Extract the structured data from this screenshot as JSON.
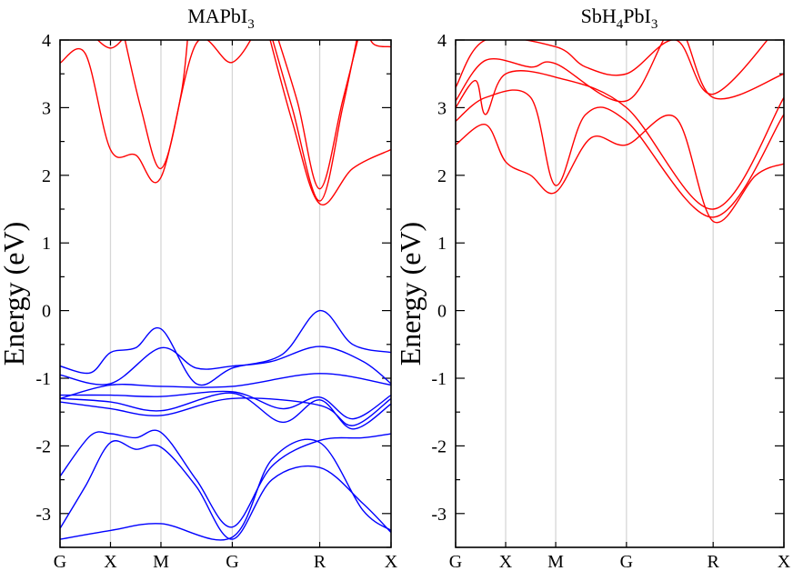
{
  "chart_data": [
    {
      "type": "line",
      "title": "MAPbI",
      "title_subscript": "3",
      "ylabel": "Energy (eV)",
      "xlabel": "",
      "ylim": [
        -3.5,
        4
      ],
      "yticks": [
        -3,
        -2,
        -1,
        0,
        1,
        2,
        3,
        4
      ],
      "high_symmetry_points": [
        {
          "label": "G",
          "k": 0
        },
        {
          "label": "X",
          "k": 0.5
        },
        {
          "label": "M",
          "k": 1.0
        },
        {
          "label": "G",
          "k": 1.707
        },
        {
          "label": "R",
          "k": 2.573
        },
        {
          "label": "X",
          "k": 3.28
        }
      ],
      "colors": {
        "conduction": "#ff0000",
        "valence": "#0000ff"
      },
      "series": [
        {
          "name": "CB1",
          "band": "conduction",
          "points": [
            [
              0,
              3.66
            ],
            [
              0.25,
              3.8
            ],
            [
              0.5,
              2.38
            ],
            [
              0.75,
              2.3
            ],
            [
              1.0,
              1.97
            ],
            [
              1.35,
              3.95
            ],
            [
              1.707,
              3.67
            ],
            [
              2.0,
              4.3
            ]
          ]
        },
        {
          "name": "CB2",
          "band": "conduction",
          "points": [
            [
              0.2,
              4.3
            ],
            [
              0.5,
              3.88
            ],
            [
              0.75,
              4.3
            ]
          ]
        },
        {
          "name": "CB3",
          "band": "conduction",
          "points": [
            [
              0.6,
              4.3
            ],
            [
              0.8,
              3.0
            ],
            [
              1.0,
              2.1
            ],
            [
              1.2,
              3.2
            ],
            [
              1.28,
              4.3
            ]
          ]
        },
        {
          "name": "CB4",
          "band": "conduction",
          "points": [
            [
              2.03,
              4.3
            ],
            [
              2.3,
              2.8
            ],
            [
              2.573,
              1.58
            ],
            [
              2.9,
              2.1
            ],
            [
              3.28,
              2.38
            ]
          ]
        },
        {
          "name": "CB5",
          "band": "conduction",
          "points": [
            [
              2.05,
              4.3
            ],
            [
              2.3,
              3.0
            ],
            [
              2.573,
              1.62
            ],
            [
              2.8,
              3.0
            ],
            [
              2.98,
              4.3
            ]
          ]
        },
        {
          "name": "CB6",
          "band": "conduction",
          "points": [
            [
              2.1,
              4.3
            ],
            [
              2.35,
              3.1
            ],
            [
              2.573,
              1.8
            ],
            [
              2.8,
              3.1
            ],
            [
              3.0,
              4.3
            ]
          ]
        },
        {
          "name": "CB7",
          "band": "conduction",
          "points": [
            [
              3.0,
              4.3
            ],
            [
              3.1,
              3.95
            ],
            [
              3.28,
              3.9
            ]
          ]
        },
        {
          "name": "VB1",
          "band": "valence",
          "points": [
            [
              0,
              -0.82
            ],
            [
              0.3,
              -0.92
            ],
            [
              0.5,
              -0.62
            ],
            [
              0.75,
              -0.55
            ],
            [
              1.0,
              -0.27
            ],
            [
              1.35,
              -1.08
            ],
            [
              1.707,
              -0.85
            ],
            [
              2.2,
              -0.65
            ],
            [
              2.573,
              0.0
            ],
            [
              2.9,
              -0.5
            ],
            [
              3.28,
              -0.62
            ]
          ]
        },
        {
          "name": "VB2",
          "band": "valence",
          "points": [
            [
              0,
              -0.95
            ],
            [
              0.5,
              -1.08
            ],
            [
              1.0,
              -0.55
            ],
            [
              1.35,
              -0.85
            ],
            [
              1.707,
              -0.82
            ],
            [
              2.1,
              -0.75
            ],
            [
              2.573,
              -0.53
            ],
            [
              3.0,
              -0.75
            ],
            [
              3.28,
              -1.08
            ]
          ]
        },
        {
          "name": "VB3",
          "band": "valence",
          "points": [
            [
              0,
              -1.3
            ],
            [
              0.5,
              -1.1
            ],
            [
              1.0,
              -1.12
            ],
            [
              1.707,
              -1.12
            ],
            [
              2.573,
              -0.93
            ],
            [
              3.28,
              -1.1
            ]
          ]
        },
        {
          "name": "VB4",
          "band": "valence",
          "points": [
            [
              0,
              -1.25
            ],
            [
              0.5,
              -1.25
            ],
            [
              1.0,
              -1.27
            ],
            [
              1.707,
              -1.2
            ],
            [
              2.2,
              -1.45
            ],
            [
              2.573,
              -1.28
            ],
            [
              2.9,
              -1.6
            ],
            [
              3.28,
              -1.25
            ]
          ]
        },
        {
          "name": "VB5",
          "band": "valence",
          "points": [
            [
              0,
              -1.3
            ],
            [
              0.5,
              -1.35
            ],
            [
              1.0,
              -1.48
            ],
            [
              1.707,
              -1.22
            ],
            [
              2.2,
              -1.65
            ],
            [
              2.573,
              -1.32
            ],
            [
              2.9,
              -1.75
            ],
            [
              3.28,
              -1.38
            ]
          ]
        },
        {
          "name": "VB6",
          "band": "valence",
          "points": [
            [
              0,
              -1.35
            ],
            [
              0.5,
              -1.45
            ],
            [
              1.0,
              -1.55
            ],
            [
              1.707,
              -1.3
            ],
            [
              2.573,
              -1.4
            ],
            [
              2.9,
              -1.7
            ],
            [
              3.28,
              -1.3
            ]
          ]
        },
        {
          "name": "VB7",
          "band": "valence",
          "points": [
            [
              0,
              -2.45
            ],
            [
              0.3,
              -1.85
            ],
            [
              0.5,
              -1.82
            ],
            [
              0.75,
              -1.88
            ],
            [
              1.0,
              -1.8
            ],
            [
              1.35,
              -2.5
            ],
            [
              1.707,
              -3.2
            ],
            [
              2.1,
              -2.3
            ],
            [
              2.573,
              -1.92
            ],
            [
              3.0,
              -1.88
            ],
            [
              3.28,
              -1.82
            ]
          ]
        },
        {
          "name": "VB8",
          "band": "valence",
          "points": [
            [
              0,
              -3.22
            ],
            [
              0.25,
              -2.6
            ],
            [
              0.5,
              -1.95
            ],
            [
              0.75,
              -2.05
            ],
            [
              1.0,
              -2.02
            ],
            [
              1.35,
              -2.6
            ],
            [
              1.707,
              -3.38
            ],
            [
              2.1,
              -2.5
            ],
            [
              2.573,
              -2.32
            ],
            [
              3.0,
              -2.85
            ],
            [
              3.28,
              -3.28
            ]
          ]
        },
        {
          "name": "VB9",
          "band": "valence",
          "points": [
            [
              0,
              -3.38
            ],
            [
              0.5,
              -3.25
            ],
            [
              1.0,
              -3.15
            ],
            [
              1.707,
              -3.35
            ],
            [
              2.1,
              -2.2
            ],
            [
              2.573,
              -1.95
            ],
            [
              3.0,
              -2.95
            ],
            [
              3.28,
              -3.25
            ]
          ]
        }
      ]
    },
    {
      "type": "line",
      "title": "SbH",
      "title_subscript": "4",
      "title_middle": "PbI",
      "title_subscript2": "3",
      "ylabel": "Energy (eV)",
      "xlabel": "",
      "ylim": [
        -3.5,
        4
      ],
      "yticks": [
        -3,
        -2,
        -1,
        0,
        1,
        2,
        3,
        4
      ],
      "high_symmetry_points": [
        {
          "label": "G",
          "k": 0
        },
        {
          "label": "X",
          "k": 0.5
        },
        {
          "label": "M",
          "k": 1.0
        },
        {
          "label": "G",
          "k": 1.707
        },
        {
          "label": "R",
          "k": 2.573
        },
        {
          "label": "X",
          "k": 3.28
        }
      ],
      "colors": {
        "conduction": "#ff0000",
        "valence": "#0000ff"
      },
      "series": [
        {
          "name": "CB1",
          "band": "conduction",
          "points": [
            [
              0,
              2.45
            ],
            [
              0.3,
              2.75
            ],
            [
              0.5,
              2.2
            ],
            [
              0.75,
              2.0
            ],
            [
              1.0,
              1.75
            ],
            [
              1.35,
              2.55
            ],
            [
              1.707,
              2.45
            ],
            [
              2.2,
              2.85
            ],
            [
              2.573,
              1.32
            ],
            [
              3.0,
              2.0
            ],
            [
              3.28,
              2.17
            ]
          ]
        },
        {
          "name": "CB2",
          "band": "conduction",
          "points": [
            [
              0,
              2.8
            ],
            [
              0.3,
              3.15
            ],
            [
              0.75,
              3.15
            ],
            [
              1.0,
              1.85
            ],
            [
              1.3,
              2.9
            ],
            [
              1.707,
              2.8
            ],
            [
              2.573,
              1.38
            ],
            [
              3.28,
              2.9
            ]
          ]
        },
        {
          "name": "CB3",
          "band": "conduction",
          "points": [
            [
              0,
              3.0
            ],
            [
              0.2,
              3.4
            ],
            [
              0.3,
              2.9
            ],
            [
              0.5,
              3.5
            ],
            [
              1.0,
              3.45
            ],
            [
              1.707,
              3.0
            ],
            [
              2.573,
              1.5
            ],
            [
              3.28,
              3.15
            ]
          ]
        },
        {
          "name": "CB4",
          "band": "conduction",
          "points": [
            [
              0,
              3.1
            ],
            [
              0.3,
              3.7
            ],
            [
              0.75,
              3.6
            ],
            [
              1.0,
              3.65
            ],
            [
              1.707,
              3.1
            ],
            [
              2.2,
              4.2
            ],
            [
              2.573,
              3.15
            ],
            [
              3.28,
              3.5
            ]
          ]
        },
        {
          "name": "CB5",
          "band": "conduction",
          "points": [
            [
              0,
              3.3
            ],
            [
              0.3,
              4.0
            ],
            [
              1.0,
              3.9
            ],
            [
              1.3,
              3.6
            ],
            [
              1.707,
              3.5
            ],
            [
              2.2,
              4.0
            ],
            [
              2.573,
              3.2
            ],
            [
              3.28,
              4.3
            ]
          ]
        }
      ]
    }
  ]
}
